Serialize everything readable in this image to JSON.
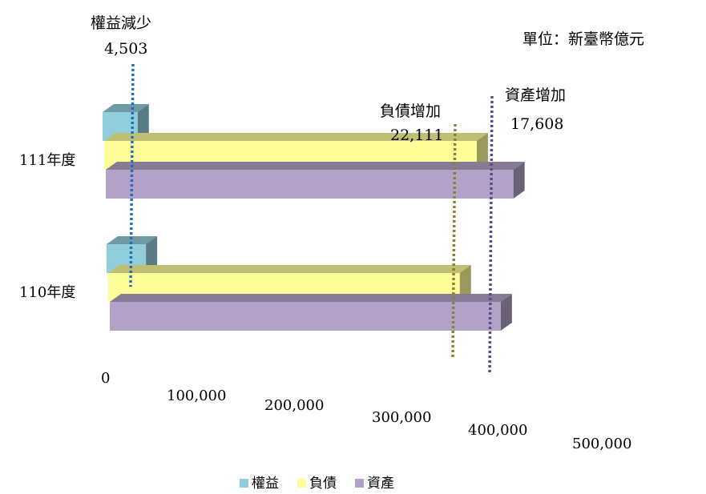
{
  "chart_data": {
    "type": "bar",
    "orientation": "horizontal",
    "style": "3d",
    "unit": "單位：新臺幣億元",
    "categories": [
      "111年度",
      "110年度"
    ],
    "series": [
      {
        "name": "權益",
        "color": "#92cddc",
        "values": [
          37000,
          41503
        ]
      },
      {
        "name": "負債",
        "color": "#ffff99",
        "values": [
          393000,
          370889
        ]
      },
      {
        "name": "資產",
        "color": "#b3a2c7",
        "values": [
          430000,
          412392
        ]
      }
    ],
    "xlim": [
      0,
      500000
    ],
    "x_ticks": [
      "0",
      "100,000",
      "200,000",
      "300,000",
      "400,000",
      "500,000"
    ],
    "grid": true,
    "legend_position": "bottom",
    "annotations": [
      {
        "label": "權益減少",
        "value": "4,503",
        "series": "權益",
        "line_color": "#1f6fbf"
      },
      {
        "label": "負債增加",
        "value": "22,111",
        "series": "負債",
        "line_color": "#8c7f3a"
      },
      {
        "label": "資產增加",
        "value": "17,608",
        "series": "資產",
        "line_color": "#5a4a8a"
      }
    ]
  }
}
